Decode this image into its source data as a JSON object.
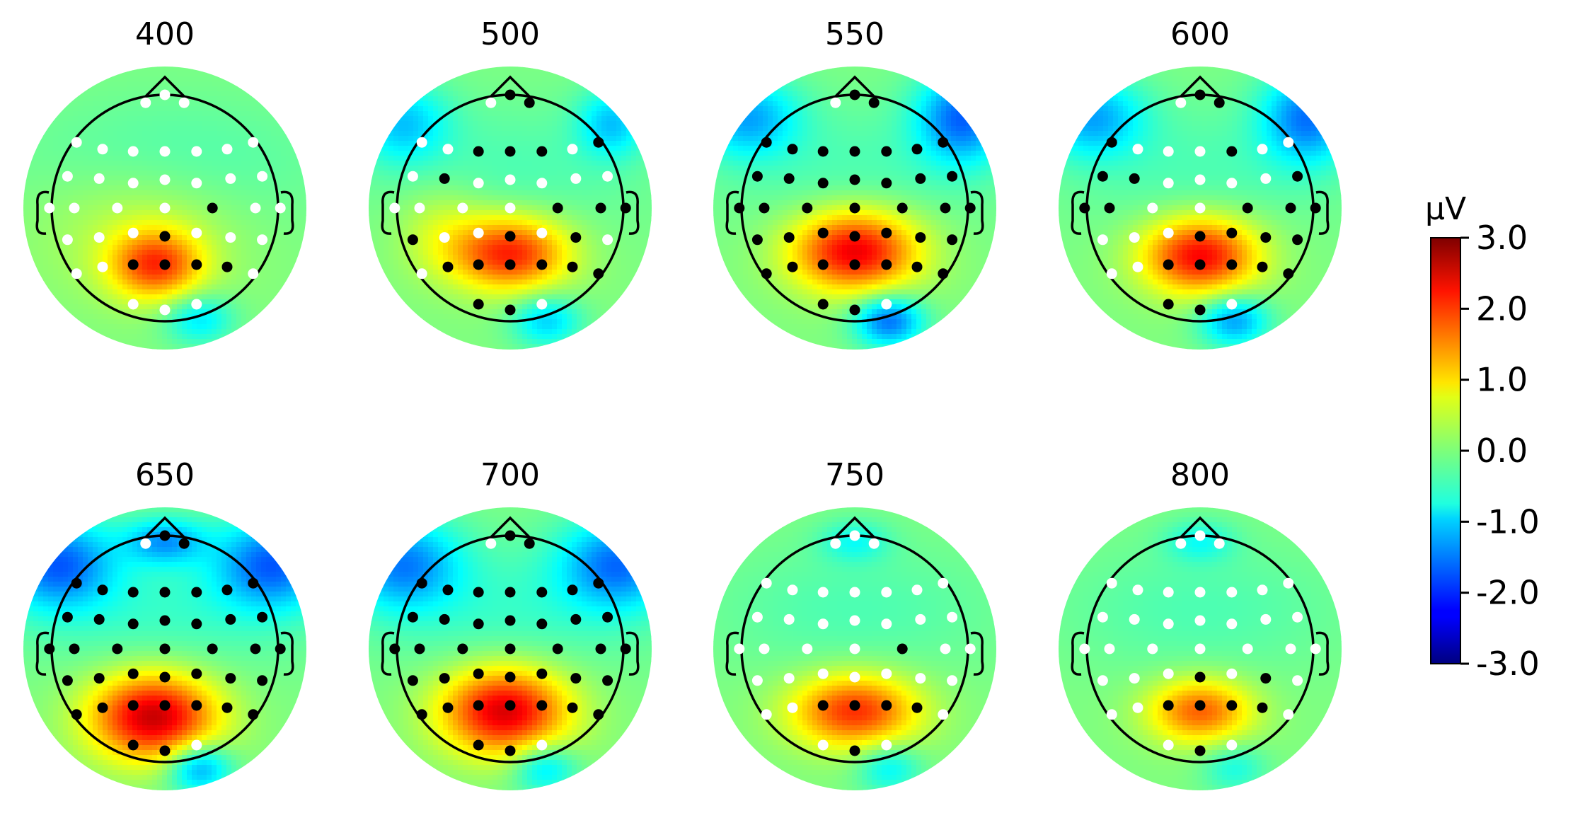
{
  "chart_data": {
    "type": "heatmap",
    "panel_titles": [
      "400",
      "500",
      "550",
      "600",
      "650",
      "700",
      "750",
      "800"
    ],
    "colorbar": {
      "label": "µV",
      "vmin": -3.0,
      "vmax": 3.0,
      "ticks": [
        "3.0",
        "2.0",
        "1.0",
        "0.0",
        "-1.0",
        "-2.0",
        "-3.0"
      ],
      "colormap": "jet"
    },
    "sensors": [
      [
        -0.17,
        0.93
      ],
      [
        0.0,
        1.0
      ],
      [
        0.17,
        0.93
      ],
      [
        -0.78,
        0.58
      ],
      [
        -0.55,
        0.52
      ],
      [
        -0.28,
        0.5
      ],
      [
        0.0,
        0.5
      ],
      [
        0.28,
        0.5
      ],
      [
        0.55,
        0.52
      ],
      [
        0.78,
        0.58
      ],
      [
        -0.86,
        0.28
      ],
      [
        -0.58,
        0.26
      ],
      [
        -0.28,
        0.22
      ],
      [
        0.0,
        0.25
      ],
      [
        0.28,
        0.22
      ],
      [
        0.58,
        0.26
      ],
      [
        0.86,
        0.28
      ],
      [
        -1.02,
        0.0
      ],
      [
        -0.8,
        0.0
      ],
      [
        -0.42,
        0.0
      ],
      [
        0.0,
        0.0
      ],
      [
        0.42,
        0.0
      ],
      [
        0.8,
        0.0
      ],
      [
        1.02,
        0.0
      ],
      [
        -0.86,
        -0.28
      ],
      [
        -0.58,
        -0.26
      ],
      [
        -0.28,
        -0.22
      ],
      [
        0.0,
        -0.25
      ],
      [
        0.28,
        -0.22
      ],
      [
        0.58,
        -0.26
      ],
      [
        0.86,
        -0.28
      ],
      [
        -0.78,
        -0.58
      ],
      [
        -0.55,
        -0.52
      ],
      [
        -0.28,
        -0.5
      ],
      [
        0.0,
        -0.5
      ],
      [
        0.28,
        -0.5
      ],
      [
        0.55,
        -0.52
      ],
      [
        0.78,
        -0.58
      ],
      [
        -0.28,
        -0.85
      ],
      [
        0.0,
        -0.9
      ],
      [
        0.28,
        -0.85
      ]
    ],
    "panels": [
      {
        "title": "400",
        "blobs": [
          [
            -0.08,
            -0.5,
            0.4,
            0.3,
            1.8
          ],
          [
            0.3,
            -0.98,
            0.3,
            0.22,
            -0.9
          ],
          [
            -0.2,
            -0.1,
            0.9,
            0.6,
            0.5
          ],
          [
            0,
            0.35,
            1.3,
            0.6,
            -0.4
          ]
        ],
        "significant": [
          33,
          34,
          35,
          36,
          27,
          21
        ]
      },
      {
        "title": "500",
        "blobs": [
          [
            0.0,
            -0.4,
            0.5,
            0.32,
            2.1
          ],
          [
            0.32,
            -1.0,
            0.3,
            0.22,
            -1.0
          ],
          [
            -0.95,
            0.75,
            0.4,
            0.35,
            -1.0
          ],
          [
            0.9,
            0.75,
            0.3,
            0.3,
            -1.0
          ],
          [
            0,
            0.35,
            1.3,
            0.6,
            -0.3
          ],
          [
            -0.6,
            -0.2,
            0.4,
            0.4,
            0.5
          ]
        ],
        "significant": [
          1,
          2,
          5,
          6,
          7,
          9,
          11,
          21,
          22,
          23,
          24,
          27,
          29,
          32,
          33,
          34,
          35,
          36,
          37,
          38,
          39
        ]
      },
      {
        "title": "550",
        "blobs": [
          [
            0.0,
            -0.38,
            0.55,
            0.35,
            2.4
          ],
          [
            0.3,
            -1.0,
            0.3,
            0.22,
            -1.6
          ],
          [
            -0.95,
            0.8,
            0.45,
            0.35,
            -1.2
          ],
          [
            0.95,
            0.8,
            0.4,
            0.4,
            -1.6
          ],
          [
            0,
            0.35,
            1.3,
            0.6,
            -0.3
          ]
        ],
        "significant": [
          1,
          2,
          3,
          4,
          5,
          6,
          7,
          8,
          9,
          10,
          11,
          12,
          13,
          14,
          15,
          16,
          17,
          18,
          19,
          20,
          21,
          22,
          23,
          24,
          25,
          26,
          27,
          28,
          29,
          30,
          31,
          32,
          33,
          34,
          35,
          36,
          37,
          38,
          39
        ]
      },
      {
        "title": "600",
        "blobs": [
          [
            0.0,
            -0.42,
            0.5,
            0.33,
            2.3
          ],
          [
            0.3,
            -1.0,
            0.3,
            0.22,
            -1.3
          ],
          [
            -0.95,
            0.8,
            0.45,
            0.35,
            -1.2
          ],
          [
            0.95,
            0.8,
            0.4,
            0.4,
            -1.5
          ],
          [
            0,
            0.35,
            1.3,
            0.6,
            -0.3
          ]
        ],
        "significant": [
          1,
          2,
          3,
          7,
          10,
          11,
          16,
          17,
          18,
          21,
          22,
          23,
          27,
          28,
          29,
          30,
          33,
          34,
          35,
          36,
          37,
          38,
          39
        ]
      },
      {
        "title": "650",
        "blobs": [
          [
            -0.1,
            -0.6,
            0.55,
            0.38,
            2.6
          ],
          [
            0.3,
            -1.05,
            0.28,
            0.22,
            -1.4
          ],
          [
            -0.95,
            0.75,
            0.5,
            0.4,
            -1.6
          ],
          [
            0.95,
            0.75,
            0.5,
            0.4,
            -1.6
          ],
          [
            0,
            0.95,
            0.35,
            0.2,
            -1.2
          ],
          [
            0,
            0.35,
            1.3,
            0.6,
            -0.4
          ]
        ],
        "significant": [
          1,
          2,
          3,
          4,
          5,
          6,
          7,
          8,
          9,
          10,
          11,
          12,
          13,
          14,
          15,
          16,
          17,
          18,
          19,
          20,
          21,
          22,
          23,
          24,
          25,
          26,
          27,
          28,
          29,
          30,
          31,
          32,
          33,
          34,
          35,
          36,
          37,
          38,
          39
        ]
      },
      {
        "title": "700",
        "blobs": [
          [
            -0.05,
            -0.55,
            0.55,
            0.38,
            2.5
          ],
          [
            0.3,
            -1.05,
            0.28,
            0.22,
            -1.0
          ],
          [
            -0.95,
            0.75,
            0.5,
            0.4,
            -1.4
          ],
          [
            0.95,
            0.75,
            0.5,
            0.4,
            -1.5
          ],
          [
            0,
            0.35,
            1.3,
            0.6,
            -0.4
          ]
        ],
        "significant": [
          1,
          2,
          3,
          4,
          5,
          6,
          7,
          8,
          9,
          10,
          11,
          12,
          13,
          14,
          15,
          16,
          17,
          18,
          19,
          20,
          21,
          22,
          23,
          24,
          25,
          26,
          27,
          28,
          29,
          30,
          31,
          32,
          33,
          34,
          35,
          36,
          37,
          38,
          39
        ]
      },
      {
        "title": "750",
        "blobs": [
          [
            0.0,
            -0.55,
            0.55,
            0.32,
            2.0
          ],
          [
            0.3,
            -1.05,
            0.28,
            0.22,
            -0.8
          ],
          [
            0,
            0.35,
            1.3,
            0.6,
            -0.3
          ],
          [
            0,
            0.95,
            0.3,
            0.18,
            -0.6
          ]
        ],
        "significant": [
          33,
          34,
          35,
          36,
          39,
          21
        ]
      },
      {
        "title": "800",
        "blobs": [
          [
            0.0,
            -0.55,
            0.45,
            0.28,
            1.7
          ],
          [
            0.3,
            -1.05,
            0.28,
            0.22,
            -0.6
          ],
          [
            0,
            0.35,
            1.3,
            0.6,
            -0.3
          ],
          [
            0,
            0.95,
            0.3,
            0.18,
            -0.6
          ]
        ],
        "significant": [
          27,
          29,
          33,
          34,
          35,
          36,
          39
        ]
      }
    ]
  }
}
